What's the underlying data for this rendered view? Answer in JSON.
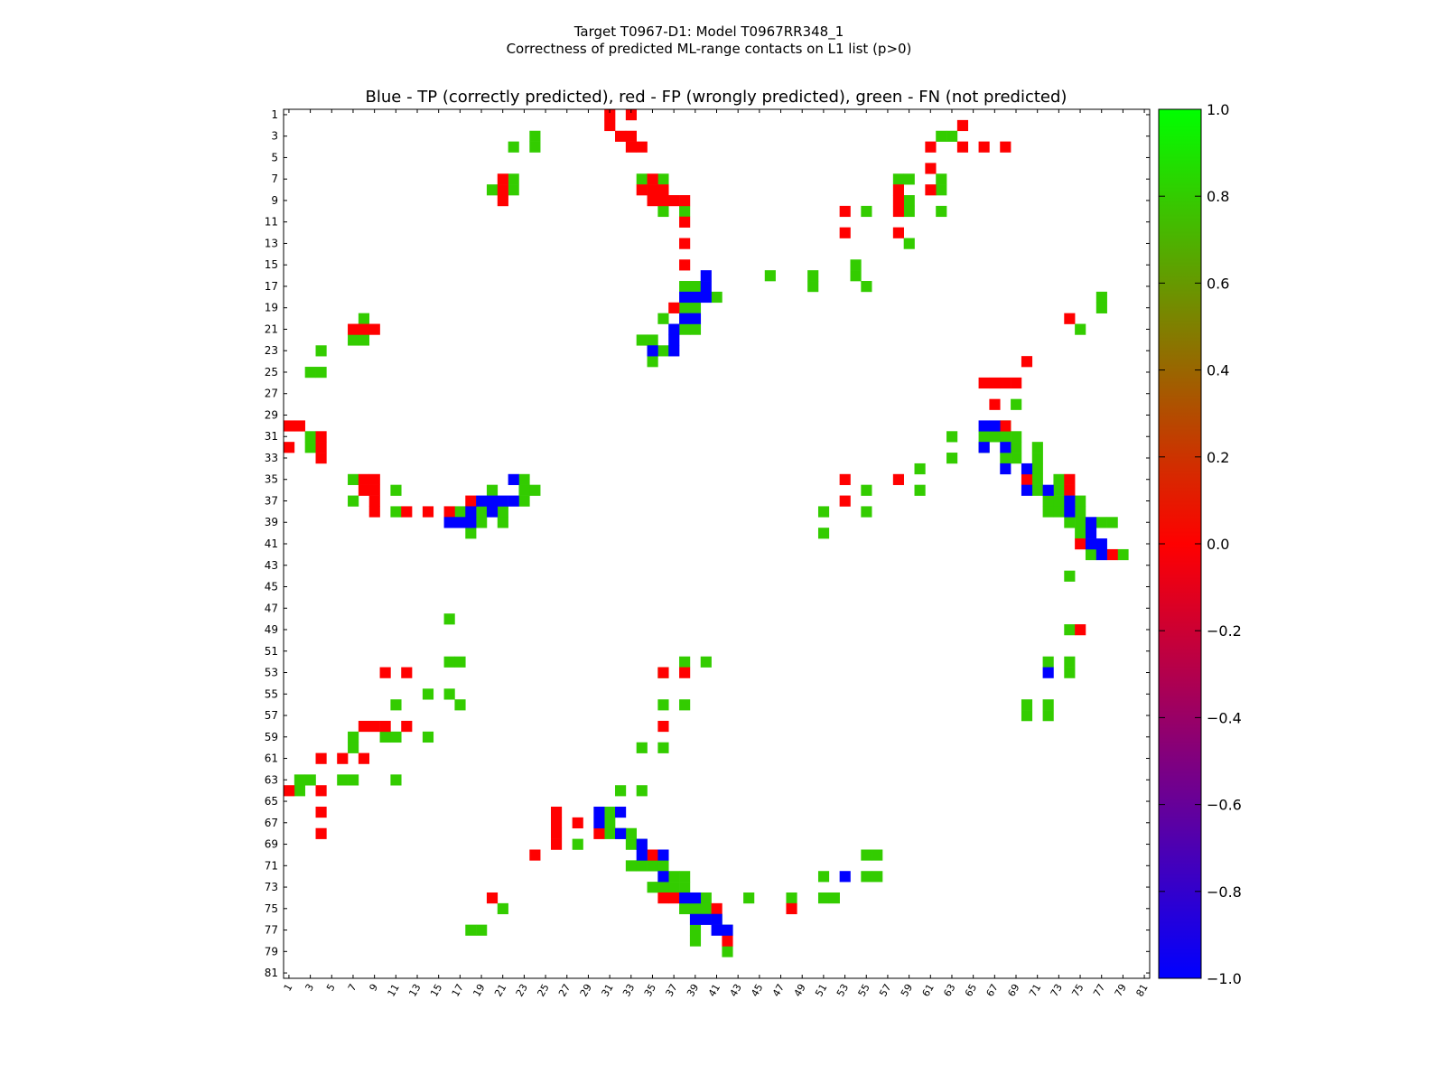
{
  "chart_data": {
    "type": "heatmap",
    "suptitle_line1": "Target T0967-D1: Model T0967RR348_1",
    "suptitle_line2": "Correctness of predicted ML-range contacts on L1 list (p>0)",
    "title": "Blue - TP (correctly predicted), red - FP (wrongly predicted), green - FN (not predicted)",
    "xlim": [
      1,
      81
    ],
    "ylim": [
      1,
      81
    ],
    "x_ticks": [
      "1",
      "3",
      "5",
      "7",
      "9",
      "11",
      "13",
      "15",
      "17",
      "19",
      "21",
      "23",
      "25",
      "27",
      "29",
      "31",
      "33",
      "35",
      "37",
      "39",
      "41",
      "43",
      "45",
      "47",
      "49",
      "51",
      "53",
      "55",
      "57",
      "59",
      "61",
      "63",
      "65",
      "67",
      "69",
      "71",
      "73",
      "75",
      "77",
      "79",
      "81"
    ],
    "y_ticks": [
      "1",
      "3",
      "5",
      "7",
      "9",
      "11",
      "13",
      "15",
      "17",
      "19",
      "21",
      "23",
      "25",
      "27",
      "29",
      "31",
      "33",
      "35",
      "37",
      "39",
      "41",
      "43",
      "45",
      "47",
      "49",
      "51",
      "53",
      "55",
      "57",
      "59",
      "61",
      "63",
      "65",
      "67",
      "69",
      "71",
      "73",
      "75",
      "77",
      "79",
      "81"
    ],
    "colorbar": {
      "min": -1.0,
      "max": 1.0,
      "ticks": [
        "1.0",
        "0.8",
        "0.6",
        "0.4",
        "0.2",
        "0.0",
        "−0.2",
        "−0.4",
        "−0.6",
        "−0.8",
        "−1.0"
      ],
      "tick_values": [
        1.0,
        0.8,
        0.6,
        0.4,
        0.2,
        0.0,
        -0.2,
        -0.4,
        -0.6,
        -0.8,
        -1.0
      ],
      "colors": [
        "#0000ff",
        "#ff0000",
        "#00ff00"
      ]
    },
    "category_colors": {
      "TP": "#0000ff",
      "FP": "#ff0000",
      "FN": "#33cc00"
    },
    "cells": {
      "FN": [
        [
          32,
          3
        ],
        [
          31,
          3
        ],
        [
          23,
          4
        ],
        [
          25,
          4
        ],
        [
          25,
          3
        ],
        [
          63,
          2
        ],
        [
          64,
          2
        ],
        [
          63,
          3
        ],
        [
          59,
          7
        ],
        [
          60,
          7
        ],
        [
          63,
          6
        ],
        [
          63,
          7
        ],
        [
          22,
          7
        ],
        [
          22,
          8
        ],
        [
          20,
          8
        ],
        [
          35,
          7
        ],
        [
          37,
          7
        ],
        [
          36,
          11
        ],
        [
          38,
          11
        ],
        [
          56,
          11
        ],
        [
          59,
          10
        ],
        [
          59,
          11
        ],
        [
          63,
          11
        ],
        [
          55,
          14
        ],
        [
          59,
          14
        ],
        [
          48,
          16
        ],
        [
          52,
          16
        ],
        [
          52,
          17
        ],
        [
          55,
          16
        ],
        [
          56,
          17
        ],
        [
          38,
          17
        ],
        [
          39,
          17
        ],
        [
          40,
          18
        ],
        [
          38,
          19
        ],
        [
          39,
          19
        ],
        [
          36,
          20
        ],
        [
          38,
          21
        ],
        [
          39,
          21
        ],
        [
          35,
          23
        ],
        [
          36,
          23
        ],
        [
          37,
          23
        ],
        [
          36,
          24
        ],
        [
          8,
          20
        ],
        [
          7,
          22
        ],
        [
          8,
          22
        ],
        [
          4,
          22
        ],
        [
          3,
          24
        ],
        [
          4,
          24
        ],
        [
          77,
          18
        ],
        [
          77,
          19
        ],
        [
          75,
          21
        ],
        [
          69,
          28
        ],
        [
          66,
          31
        ],
        [
          67,
          31
        ],
        [
          68,
          31
        ],
        [
          68,
          32
        ],
        [
          64,
          32
        ],
        [
          69,
          33
        ],
        [
          68,
          33
        ],
        [
          69,
          34
        ],
        [
          71,
          33
        ],
        [
          71,
          34
        ],
        [
          60,
          34
        ],
        [
          64,
          34
        ],
        [
          71,
          35
        ],
        [
          71,
          36
        ],
        [
          73,
          35
        ],
        [
          72,
          36
        ],
        [
          73,
          36
        ],
        [
          72,
          37
        ],
        [
          73,
          37
        ],
        [
          72,
          38
        ],
        [
          73,
          38
        ],
        [
          75,
          38
        ],
        [
          75,
          39
        ],
        [
          74,
          40
        ],
        [
          75,
          40
        ],
        [
          77,
          39
        ],
        [
          78,
          39
        ],
        [
          76,
          41
        ],
        [
          77,
          42
        ],
        [
          79,
          42
        ],
        [
          52,
          38
        ],
        [
          52,
          40
        ],
        [
          53,
          36
        ],
        [
          56,
          36
        ],
        [
          56,
          38
        ],
        [
          60,
          36
        ],
        [
          7,
          34
        ],
        [
          7,
          36
        ],
        [
          10,
          36
        ],
        [
          10,
          38
        ],
        [
          22,
          34
        ],
        [
          23,
          35
        ],
        [
          22,
          35
        ],
        [
          24,
          35
        ],
        [
          23,
          36
        ],
        [
          20,
          36
        ],
        [
          21,
          38
        ],
        [
          21,
          39
        ],
        [
          18,
          41
        ],
        [
          17,
          38
        ],
        [
          17,
          39
        ],
        [
          18,
          39
        ],
        [
          19,
          38
        ],
        [
          19,
          39
        ],
        [
          16,
          46
        ],
        [
          16,
          50
        ],
        [
          17,
          50
        ],
        [
          16,
          54
        ],
        [
          15,
          54
        ],
        [
          17,
          55
        ],
        [
          10,
          55
        ],
        [
          7,
          58
        ],
        [
          7,
          59
        ],
        [
          9,
          59
        ],
        [
          10,
          59
        ],
        [
          13,
          59
        ],
        [
          7,
          62
        ],
        [
          8,
          62
        ],
        [
          10,
          62
        ],
        [
          3,
          62
        ],
        [
          3,
          63
        ],
        [
          31,
          63
        ],
        [
          33,
          63
        ],
        [
          34,
          60
        ],
        [
          36,
          60
        ],
        [
          36,
          55
        ],
        [
          38,
          55
        ],
        [
          38,
          51
        ],
        [
          40,
          51
        ],
        [
          74,
          44
        ],
        [
          74,
          48
        ],
        [
          72,
          51
        ],
        [
          74,
          51
        ],
        [
          74,
          52
        ],
        [
          70,
          55
        ],
        [
          70,
          56
        ],
        [
          72,
          55
        ],
        [
          72,
          56
        ],
        [
          31,
          66
        ],
        [
          32,
          66
        ],
        [
          31,
          67
        ],
        [
          30,
          68
        ],
        [
          31,
          68
        ],
        [
          33,
          68
        ],
        [
          31,
          69
        ],
        [
          32,
          69
        ],
        [
          33,
          69
        ],
        [
          28,
          69
        ],
        [
          32,
          71
        ],
        [
          33,
          71
        ],
        [
          34,
          71
        ],
        [
          35,
          71
        ],
        [
          36,
          71
        ],
        [
          37,
          72
        ],
        [
          38,
          72
        ],
        [
          35,
          73
        ],
        [
          36,
          73
        ],
        [
          37,
          73
        ],
        [
          38,
          73
        ],
        [
          39,
          74
        ],
        [
          44,
          74
        ],
        [
          49,
          74
        ],
        [
          52,
          74
        ],
        [
          53,
          74
        ],
        [
          52,
          72
        ],
        [
          56,
          70
        ],
        [
          57,
          70
        ],
        [
          56,
          72
        ],
        [
          57,
          72
        ],
        [
          37,
          75
        ],
        [
          38,
          75
        ],
        [
          39,
          75
        ],
        [
          40,
          75
        ],
        [
          42,
          76
        ],
        [
          39,
          77
        ],
        [
          39,
          78
        ],
        [
          42,
          79
        ],
        [
          21,
          75
        ],
        [
          18,
          77
        ],
        [
          19,
          77
        ]
      ],
      "FP": [
        [
          30,
          1
        ],
        [
          30,
          2
        ],
        [
          32,
          1
        ],
        [
          31,
          4
        ],
        [
          32,
          4
        ],
        [
          33,
          4
        ],
        [
          64,
          1
        ],
        [
          64,
          4
        ],
        [
          61,
          4
        ],
        [
          66,
          4
        ],
        [
          68,
          4
        ],
        [
          61,
          6
        ],
        [
          61,
          8
        ],
        [
          21,
          7
        ],
        [
          21,
          8
        ],
        [
          21,
          9
        ],
        [
          35,
          8
        ],
        [
          36,
          8
        ],
        [
          36,
          9
        ],
        [
          35,
          9
        ],
        [
          37,
          9
        ],
        [
          38,
          9
        ],
        [
          58,
          8
        ],
        [
          58,
          9
        ],
        [
          58,
          10
        ],
        [
          53,
          10
        ],
        [
          53,
          12
        ],
        [
          58,
          12
        ],
        [
          38,
          12
        ],
        [
          38,
          14
        ],
        [
          38,
          16
        ],
        [
          37,
          18
        ],
        [
          7,
          21
        ],
        [
          8,
          21
        ],
        [
          9,
          21
        ],
        [
          74,
          20
        ],
        [
          70,
          24
        ],
        [
          66,
          26
        ],
        [
          67,
          26
        ],
        [
          68,
          26
        ],
        [
          69,
          26
        ],
        [
          67,
          28
        ],
        [
          68,
          30
        ],
        [
          1,
          31
        ],
        [
          2,
          31
        ],
        [
          3,
          32
        ],
        [
          1,
          33
        ],
        [
          3,
          33
        ],
        [
          4,
          33
        ],
        [
          4,
          34
        ],
        [
          8,
          34
        ],
        [
          7,
          35
        ],
        [
          8,
          35
        ],
        [
          9,
          35
        ],
        [
          8,
          36
        ],
        [
          9,
          36
        ],
        [
          9,
          37
        ],
        [
          9,
          38
        ],
        [
          11,
          38
        ],
        [
          13,
          38
        ],
        [
          15,
          38
        ],
        [
          19,
          37
        ],
        [
          53,
          36
        ],
        [
          58,
          36
        ],
        [
          53,
          38
        ],
        [
          70,
          35
        ],
        [
          74,
          36
        ],
        [
          74,
          37
        ],
        [
          75,
          41
        ],
        [
          78,
          42
        ],
        [
          75,
          48
        ],
        [
          10,
          53
        ],
        [
          12,
          53
        ],
        [
          35,
          53
        ],
        [
          37,
          53
        ],
        [
          8,
          58
        ],
        [
          9,
          58
        ],
        [
          10,
          58
        ],
        [
          12,
          58
        ],
        [
          35,
          58
        ],
        [
          4,
          61
        ],
        [
          6,
          61
        ],
        [
          8,
          61
        ],
        [
          2,
          64
        ],
        [
          4,
          64
        ],
        [
          4,
          66
        ],
        [
          4,
          68
        ],
        [
          26,
          66
        ],
        [
          26,
          67
        ],
        [
          26,
          68
        ],
        [
          26,
          69
        ],
        [
          28,
          67
        ],
        [
          30,
          68
        ],
        [
          24,
          70
        ],
        [
          35,
          70
        ],
        [
          35,
          74
        ],
        [
          36,
          74
        ],
        [
          41,
          75
        ],
        [
          49,
          75
        ],
        [
          20,
          74
        ],
        [
          42,
          78
        ]
      ],
      "TP": [
        [
          39,
          16
        ],
        [
          39,
          17
        ],
        [
          39,
          18
        ],
        [
          38,
          18
        ],
        [
          37,
          19
        ],
        [
          37,
          20
        ],
        [
          38,
          20
        ],
        [
          37,
          21
        ],
        [
          35,
          22
        ],
        [
          37,
          22
        ],
        [
          66,
          30
        ],
        [
          67,
          30
        ],
        [
          66,
          32
        ],
        [
          68,
          32
        ],
        [
          69,
          34
        ],
        [
          70,
          34
        ],
        [
          70,
          36
        ],
        [
          72,
          36
        ],
        [
          74,
          38
        ],
        [
          74,
          39
        ],
        [
          76,
          39
        ],
        [
          76,
          40
        ],
        [
          76,
          41
        ],
        [
          77,
          41
        ],
        [
          77,
          42
        ],
        [
          23,
          35
        ],
        [
          21,
          37
        ],
        [
          22,
          37
        ],
        [
          23,
          37
        ],
        [
          20,
          38
        ],
        [
          20,
          39
        ],
        [
          18,
          38
        ],
        [
          18,
          39
        ],
        [
          16,
          40
        ],
        [
          17,
          40
        ],
        [
          18,
          40
        ],
        [
          72,
          53
        ],
        [
          30,
          66
        ],
        [
          32,
          66
        ],
        [
          30,
          67
        ],
        [
          32,
          68
        ],
        [
          34,
          68
        ],
        [
          34,
          70
        ],
        [
          36,
          70
        ],
        [
          36,
          72
        ],
        [
          53,
          72
        ],
        [
          37,
          74
        ],
        [
          38,
          74
        ],
        [
          40,
          76
        ],
        [
          41,
          76
        ],
        [
          39,
          76
        ],
        [
          41,
          77
        ],
        [
          42,
          77
        ]
      ]
    }
  }
}
